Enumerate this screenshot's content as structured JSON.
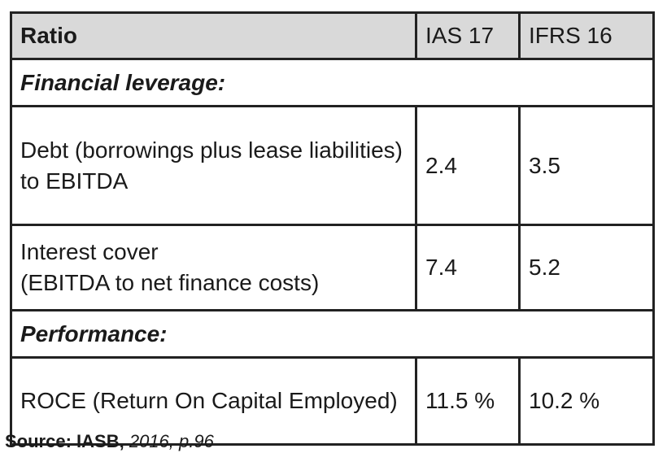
{
  "table": {
    "header": [
      "Ratio",
      "IAS 17",
      "IFRS 16"
    ],
    "rows": [
      {
        "section": "Financial leverage:"
      },
      {
        "cells": [
          "Debt (borrowings plus lease liabilities)\nto EBITDA",
          "2.4",
          "3.5"
        ]
      },
      {
        "cells": [
          "Interest cover\n(EBITDA to net finance costs)",
          "7.4",
          "5.2"
        ]
      },
      {
        "section": "Performance:"
      },
      {
        "cells": [
          "ROCE (Return On Capital Employed)",
          "11.5 %",
          "10.2 %"
        ]
      }
    ]
  },
  "source": {
    "label": "Source: IASB,",
    "reference": "2016, p.96"
  }
}
